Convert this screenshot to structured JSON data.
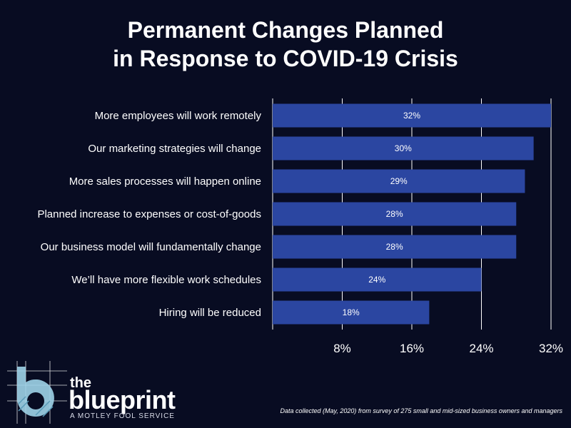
{
  "title_lines": [
    "Permanent Changes Planned",
    "in Response to COVID-19 Crisis"
  ],
  "chart_data": {
    "type": "bar",
    "orientation": "horizontal",
    "title": "Permanent Changes Planned in Response to COVID-19 Crisis",
    "categories": [
      "More employees will work remotely",
      "Our marketing strategies will change",
      "More sales processes will happen online",
      "Planned increase to expenses or cost-of-goods",
      "Our business model will fundamentally change",
      "We’ll have more flexible work schedules",
      "Hiring will be reduced"
    ],
    "values": [
      32,
      30,
      29,
      28,
      28,
      24,
      18
    ],
    "data_labels": [
      "32%",
      "30%",
      "29%",
      "28%",
      "28%",
      "24%",
      "18%"
    ],
    "x_ticks": [
      8,
      16,
      24,
      32
    ],
    "x_tick_labels": [
      "8%",
      "16%",
      "24%",
      "32%"
    ],
    "xlim": [
      0,
      32
    ],
    "grid": true,
    "bar_color": "#2b46a1",
    "xlabel": "",
    "ylabel": ""
  },
  "logo": {
    "the": "the",
    "word": "blueprint",
    "tagline": "A MOTLEY FOOL SERVICE",
    "accent": "#9fd3e8"
  },
  "footnote": "Data collected (May, 2020) from survey of 275 small and mid-sized business owners and managers"
}
